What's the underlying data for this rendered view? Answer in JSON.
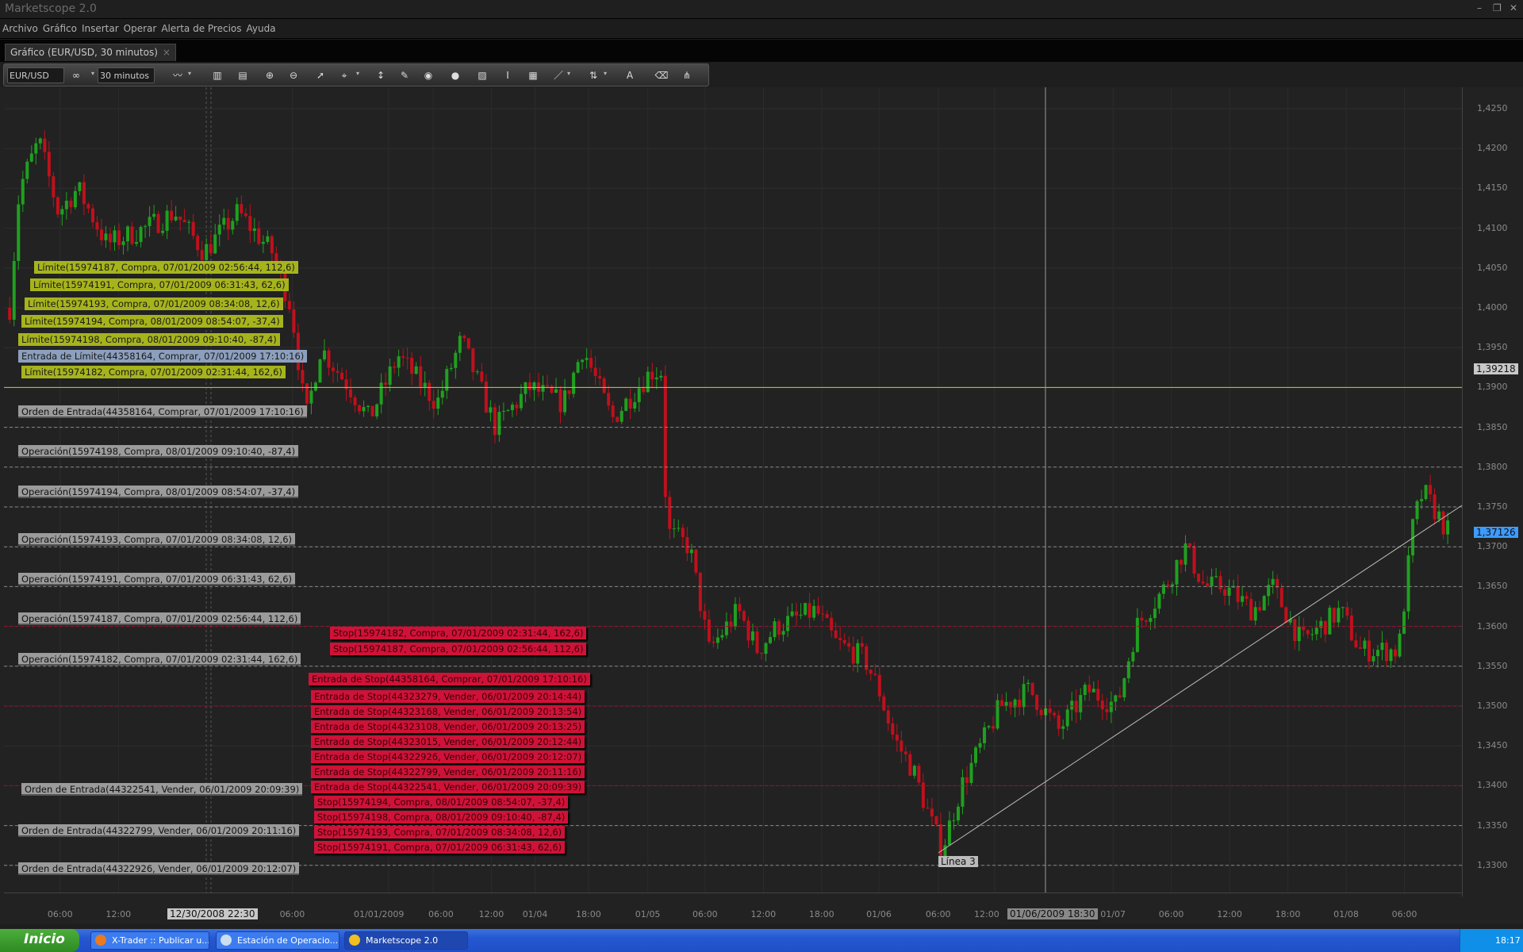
{
  "window": {
    "title": "Marketscope 2.0"
  },
  "menu": [
    "Archivo",
    "Gráfico",
    "Insertar",
    "Operar",
    "Alerta de Precios",
    "Ayuda"
  ],
  "tab": {
    "label": "Gráfico (EUR/USD, 30 minutos)",
    "close": "×"
  },
  "toolbar": {
    "symbol": "EUR/USD",
    "timeframe": "30 minutos",
    "icons": [
      "link-icon",
      "chart-type-icon",
      "candles-icon",
      "bars-icon",
      "zoom-in-icon",
      "zoom-out-icon",
      "cursor-icon",
      "crosshair-icon",
      "vertical-scale-icon",
      "note-icon",
      "indicator-icon",
      "globe-icon",
      "image-icon",
      "text-icon",
      "table-icon",
      "pencil-icon",
      "trade-icon",
      "abc-text-icon",
      "eraser-icon",
      "hierarchy-icon"
    ]
  },
  "price_axis": {
    "ticks": [
      "1,4250",
      "1,4200",
      "1,4150",
      "1,4100",
      "1,4050",
      "1,4000",
      "1,3950",
      "1,3900",
      "1,3850",
      "1,3800",
      "1,3750",
      "1,3700",
      "1,3650",
      "1,3600",
      "1,3550",
      "1,3500",
      "1,3450",
      "1,3400",
      "1,3350",
      "1,3300"
    ],
    "marker_gray": "1,39218",
    "marker_current": "1,37126"
  },
  "time_axis": {
    "ticks": [
      "06:00",
      "12:00",
      "06:00",
      "01/01/2009",
      "06:00",
      "12:00",
      "01/04",
      "18:00",
      "01/05",
      "06:00",
      "12:00",
      "18:00",
      "01/06",
      "06:00",
      "12:00",
      "01/07",
      "06:00",
      "12:00",
      "18:00",
      "01/08",
      "06:00"
    ],
    "cursor_left": "12/30/2008 22:30",
    "cursor_right": "01/06/2009 18:30"
  },
  "orders": {
    "limit": [
      "Límite(15974187, Compra, 07/01/2009 02:56:44, 112,6)",
      "Límite(15974191, Compra, 07/01/2009 06:31:43, 62,6)",
      "Límite(15974193, Compra, 07/01/2009 08:34:08, 12,6)",
      "Límite(15974194, Compra, 08/01/2009 08:54:07, -37,4)",
      "Límite(15974198, Compra, 08/01/2009 09:10:40, -87,4)",
      "Límite(15974182, Compra, 07/01/2009 02:31:44, 162,6)"
    ],
    "limit_entry": "Entrada de Límite(44358164, Comprar, 07/01/2009 17:10:16)",
    "gray": [
      "Orden de Entrada(44358164, Comprar, 07/01/2009 17:10:16)",
      "Operación(15974198, Compra, 08/01/2009 09:10:40, -87,4)",
      "Operación(15974194, Compra, 08/01/2009 08:54:07, -37,4)",
      "Operación(15974193, Compra, 07/01/2009 08:34:08, 12,6)",
      "Operación(15974191, Compra, 07/01/2009 06:31:43, 62,6)",
      "Operación(15974187, Compra, 07/01/2009 02:56:44, 112,6)",
      "Operación(15974182, Compra, 07/01/2009 02:31:44, 162,6)",
      "Orden de Entrada(44322541, Vender, 06/01/2009 20:09:39)",
      "Orden de Entrada(44322799, Vender, 06/01/2009 20:11:16)",
      "Orden de Entrada(44322926, Vender, 06/01/2009 20:12:07)"
    ],
    "red": [
      "Stop(15974182, Compra, 07/01/2009 02:31:44, 162,6)",
      "Stop(15974187, Compra, 07/01/2009 02:56:44, 112,6)",
      "Entrada de Stop(44358164, Comprar, 07/01/2009 17:10:16)",
      "Entrada de Stop(44323279, Vender, 06/01/2009 20:14:44)",
      "Entrada de Stop(44323168, Vender, 06/01/2009 20:13:54)",
      "Entrada de Stop(44323108, Vender, 06/01/2009 20:13:25)",
      "Entrada de Stop(44323015, Vender, 06/01/2009 20:12:44)",
      "Entrada de Stop(44322926, Vender, 06/01/2009 20:12:07)",
      "Entrada de Stop(44322799, Vender, 06/01/2009 20:11:16)",
      "Entrada de Stop(44322541, Vender, 06/01/2009 20:09:39)",
      "Stop(15974194, Compra, 08/01/2009 08:54:07, -37,4)",
      "Stop(15974198, Compra, 08/01/2009 09:10:40, -87,4)",
      "Stop(15974193, Compra, 07/01/2009 08:34:08, 12,6)",
      "Stop(15974191, Compra, 07/01/2009 06:31:43, 62,6)"
    ]
  },
  "trendline_label": "Línea 3",
  "taskbar": {
    "start": "Inicio",
    "tasks": [
      "X-Trader :: Publicar u...",
      "Estación de Operacio...",
      "Marketscope 2.0"
    ],
    "clock": "18:17"
  },
  "colors": {
    "up": "#1fa01f",
    "down": "#c0101c",
    "limit": "#a6b41c",
    "stop": "#cf1238",
    "current": "#3d9bff"
  }
}
